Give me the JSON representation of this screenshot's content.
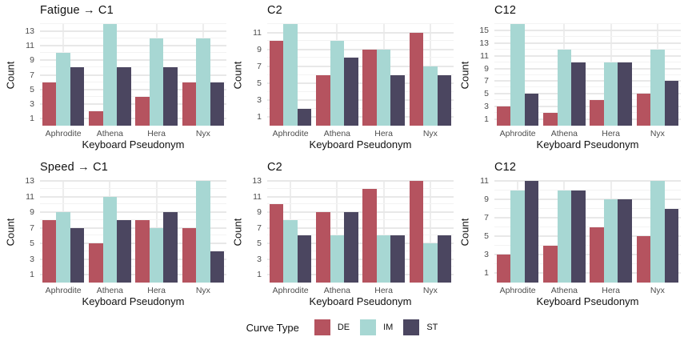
{
  "page": {
    "background": "#ffffff"
  },
  "styles": {
    "grid_major_color": "#e8e8e8",
    "grid_minor_color": "#f3f3f3",
    "grid_vertical_color": "#ededed",
    "tick_label_color": "#4d4d4d",
    "text_color": "#111111"
  },
  "legend": {
    "title": "Curve Type",
    "entries": [
      {
        "label": "DE",
        "color": "#b5535f"
      },
      {
        "label": "IM",
        "color": "#a7d7d3"
      },
      {
        "label": "ST",
        "color": "#4b4660"
      }
    ]
  },
  "chart_data": [
    {
      "type": "bar",
      "title": "Fatigue → C1",
      "xlabel": "Keyboard Pseudonym",
      "ylabel": "Count",
      "categories": [
        "Aphrodite",
        "Athena",
        "Hera",
        "Nyx"
      ],
      "yticks": [
        1,
        3,
        5,
        7,
        9,
        11,
        13
      ],
      "ylim": [
        0,
        14
      ],
      "grid": true,
      "legend_position": "bottom-shared",
      "series": [
        {
          "name": "DE",
          "values": [
            6,
            2,
            4,
            6
          ]
        },
        {
          "name": "IM",
          "values": [
            10,
            14,
            12,
            12
          ]
        },
        {
          "name": "ST",
          "values": [
            8,
            8,
            8,
            6
          ]
        }
      ]
    },
    {
      "type": "bar",
      "title": "C2",
      "xlabel": "Keyboard Pseudonym",
      "ylabel": "Count",
      "categories": [
        "Aphrodite",
        "Athena",
        "Hera",
        "Nyx"
      ],
      "yticks": [
        1,
        3,
        5,
        7,
        9,
        11
      ],
      "ylim": [
        0,
        12
      ],
      "grid": true,
      "legend_position": "bottom-shared",
      "series": [
        {
          "name": "DE",
          "values": [
            10,
            6,
            9,
            11
          ]
        },
        {
          "name": "IM",
          "values": [
            12,
            10,
            9,
            7
          ]
        },
        {
          "name": "ST",
          "values": [
            2,
            8,
            6,
            6
          ]
        }
      ]
    },
    {
      "type": "bar",
      "title": "C12",
      "xlabel": "Keyboard Pseudonym",
      "ylabel": "Count",
      "categories": [
        "Aphrodite",
        "Athena",
        "Hera",
        "Nyx"
      ],
      "yticks": [
        1,
        3,
        5,
        7,
        9,
        11,
        13,
        15
      ],
      "ylim": [
        0,
        16
      ],
      "grid": true,
      "legend_position": "bottom-shared",
      "series": [
        {
          "name": "DE",
          "values": [
            3,
            2,
            4,
            5
          ]
        },
        {
          "name": "IM",
          "values": [
            16,
            12,
            10,
            12
          ]
        },
        {
          "name": "ST",
          "values": [
            5,
            10,
            10,
            7
          ]
        }
      ]
    },
    {
      "type": "bar",
      "title": "Speed → C1",
      "xlabel": "Keyboard Pseudonym",
      "ylabel": "Count",
      "categories": [
        "Aphrodite",
        "Athena",
        "Hera",
        "Nyx"
      ],
      "yticks": [
        1,
        3,
        5,
        7,
        9,
        11,
        13
      ],
      "ylim": [
        0,
        13
      ],
      "grid": true,
      "legend_position": "bottom-shared",
      "series": [
        {
          "name": "DE",
          "values": [
            8,
            5,
            8,
            7
          ]
        },
        {
          "name": "IM",
          "values": [
            9,
            11,
            7,
            13
          ]
        },
        {
          "name": "ST",
          "values": [
            7,
            8,
            9,
            4
          ]
        }
      ]
    },
    {
      "type": "bar",
      "title": "C2",
      "xlabel": "Keyboard Pseudonym",
      "ylabel": "Count",
      "categories": [
        "Aphrodite",
        "Athena",
        "Hera",
        "Nyx"
      ],
      "yticks": [
        1,
        3,
        5,
        7,
        9,
        11,
        13
      ],
      "ylim": [
        0,
        13
      ],
      "grid": true,
      "legend_position": "bottom-shared",
      "series": [
        {
          "name": "DE",
          "values": [
            10,
            9,
            12,
            13
          ]
        },
        {
          "name": "IM",
          "values": [
            8,
            6,
            6,
            5
          ]
        },
        {
          "name": "ST",
          "values": [
            6,
            9,
            6,
            6
          ]
        }
      ]
    },
    {
      "type": "bar",
      "title": "C12",
      "xlabel": "Keyboard Pseudonym",
      "ylabel": "Count",
      "categories": [
        "Aphrodite",
        "Athena",
        "Hera",
        "Nyx"
      ],
      "yticks": [
        1,
        3,
        5,
        7,
        9,
        11
      ],
      "ylim": [
        0,
        11
      ],
      "grid": true,
      "legend_position": "bottom-shared",
      "series": [
        {
          "name": "DE",
          "values": [
            3,
            4,
            6,
            5
          ]
        },
        {
          "name": "IM",
          "values": [
            10,
            10,
            9,
            11
          ]
        },
        {
          "name": "ST",
          "values": [
            11,
            10,
            9,
            8
          ]
        }
      ]
    }
  ]
}
